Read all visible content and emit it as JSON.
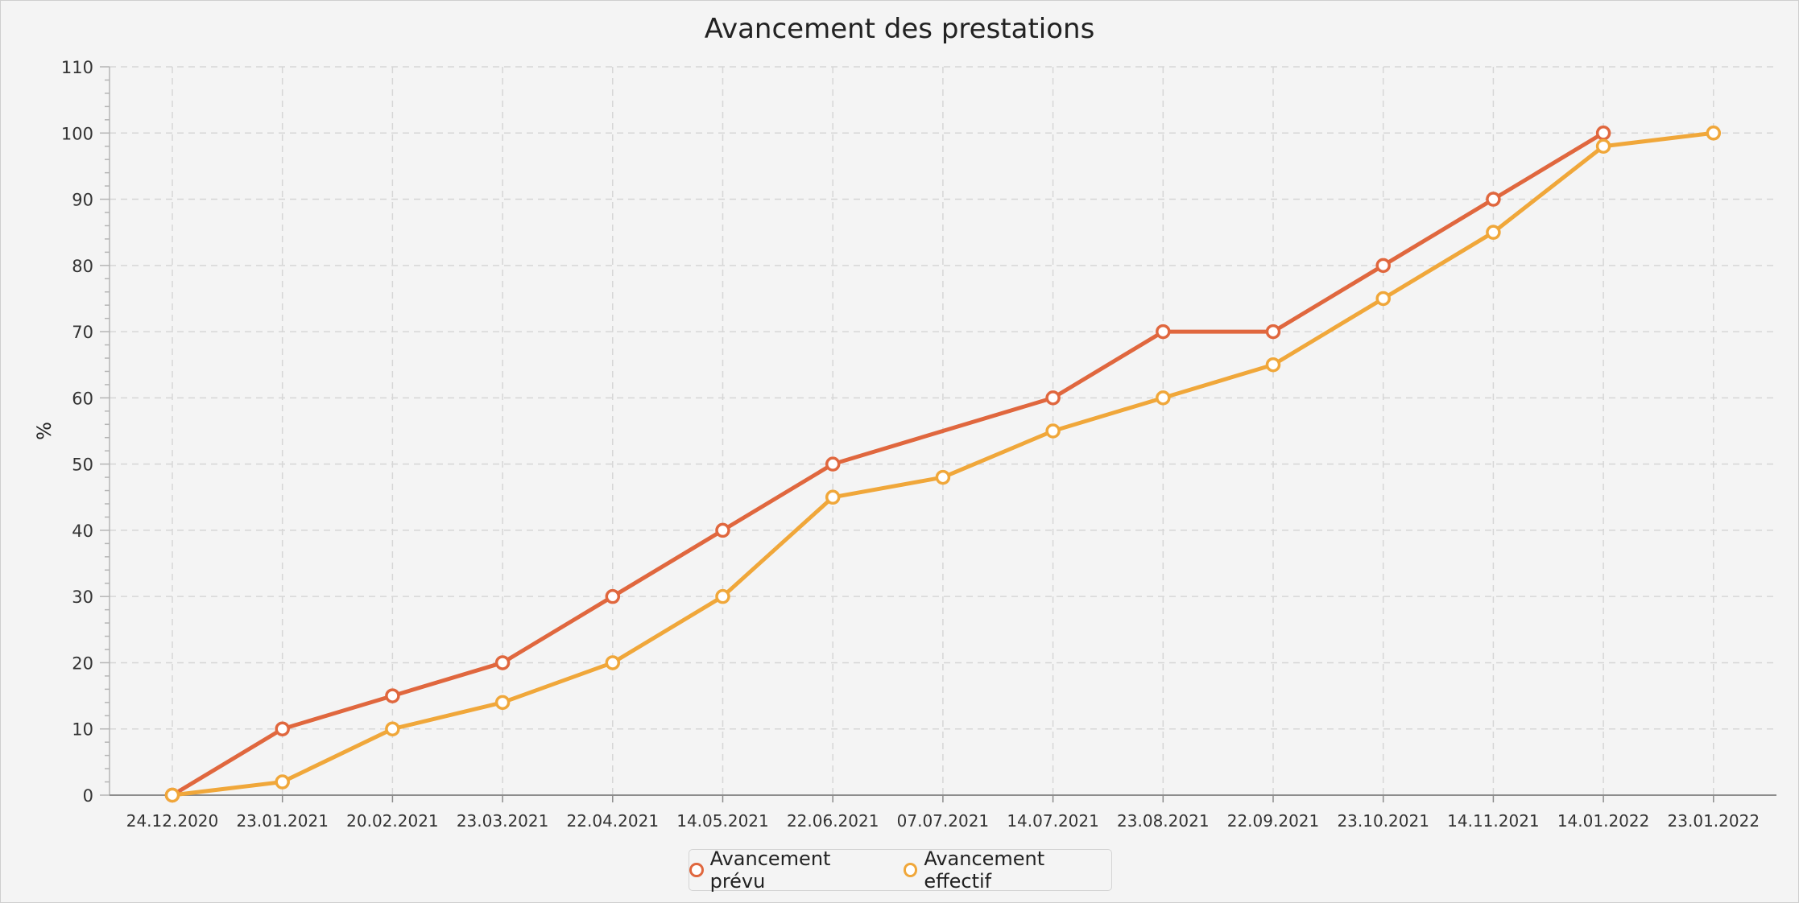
{
  "chart_data": {
    "type": "line",
    "title": "Avancement des prestations",
    "xlabel": "",
    "ylabel": "%",
    "categories": [
      "24.12.2020",
      "23.01.2021",
      "20.02.2021",
      "23.03.2021",
      "22.04.2021",
      "14.05.2021",
      "22.06.2021",
      "07.07.2021",
      "14.07.2021",
      "23.08.2021",
      "22.09.2021",
      "23.10.2021",
      "14.11.2021",
      "14.01.2022",
      "23.01.2022"
    ],
    "ylim": [
      0,
      110
    ],
    "yticks": [
      0,
      10,
      20,
      30,
      40,
      50,
      60,
      70,
      80,
      90,
      100,
      110
    ],
    "grid": true,
    "legend_position": "bottom-center",
    "series": [
      {
        "name": "Avancement prévu",
        "color": "#e0673e",
        "values": [
          0,
          10,
          15,
          20,
          30,
          40,
          50,
          null,
          60,
          70,
          70,
          80,
          90,
          100,
          null
        ],
        "markers": true
      },
      {
        "name": "Avancement effectif",
        "color": "#f0a73a",
        "values": [
          0,
          2,
          10,
          14,
          20,
          30,
          45,
          48,
          55,
          60,
          65,
          75,
          85,
          98,
          100
        ],
        "markers": true
      }
    ]
  }
}
